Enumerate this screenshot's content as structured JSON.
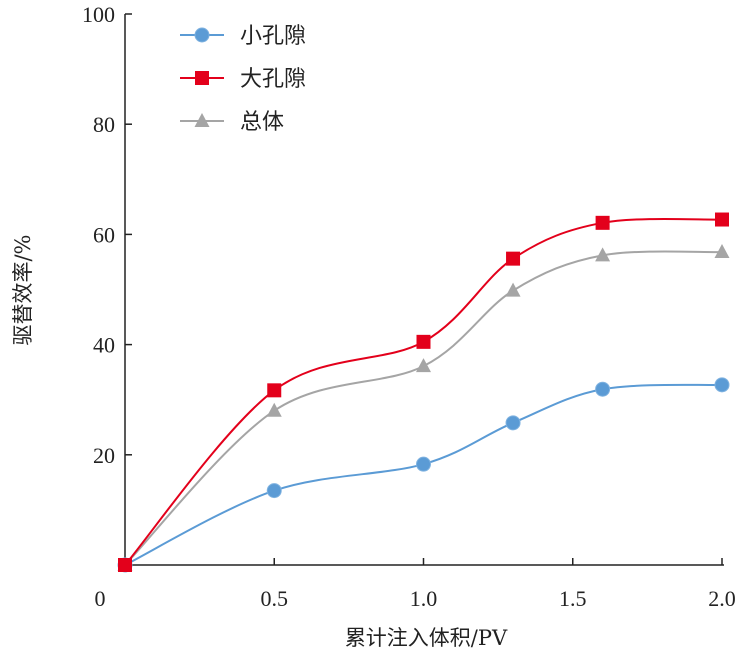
{
  "chart_data": {
    "type": "line",
    "xlabel": "累计注入体积/PV",
    "ylabel": "驱替效率/%",
    "xlim": [
      0,
      2.0
    ],
    "ylim": [
      0,
      100
    ],
    "x_ticks": [
      "0",
      "0.5",
      "1.0",
      "1.5",
      "2.0"
    ],
    "y_ticks": [
      "20",
      "40",
      "60",
      "80",
      "100"
    ],
    "smooth": true,
    "grid": false,
    "legend_position": "top-left",
    "series": [
      {
        "name": "小孔隙",
        "color": "#5b9bd5",
        "marker": "circle",
        "x": [
          0.0,
          0.5,
          1.0,
          1.3,
          1.6,
          2.0
        ],
        "y": [
          0.0,
          13.5,
          18.3,
          25.8,
          31.9,
          32.7
        ]
      },
      {
        "name": "大孔隙",
        "color": "#e3001b",
        "marker": "square",
        "x": [
          0.0,
          0.5,
          1.0,
          1.3,
          1.6,
          2.0
        ],
        "y": [
          0.0,
          31.7,
          40.5,
          55.6,
          62.1,
          62.7
        ]
      },
      {
        "name": "总体",
        "color": "#a5a5a5",
        "marker": "triangle",
        "x": [
          0.0,
          0.5,
          1.0,
          1.3,
          1.6,
          2.0
        ],
        "y": [
          0.0,
          28.0,
          36.1,
          49.8,
          56.2,
          56.8
        ]
      }
    ]
  }
}
